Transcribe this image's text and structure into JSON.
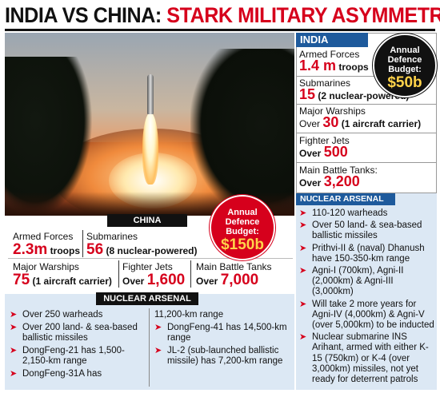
{
  "title": {
    "part1": "INDIA VS CHINA:",
    "part2": "STARK MILITARY ASYMMETRY"
  },
  "colors": {
    "accent_red": "#d6001c",
    "india_blue": "#1e5a9c",
    "panel_blue": "#dce8f4",
    "dark": "#111111"
  },
  "china": {
    "label": "CHINA",
    "budget": {
      "label_line1": "Annual",
      "label_line2": "Defence",
      "label_line3": "Budget:",
      "amount": "$150b"
    },
    "armed_forces": {
      "label": "Armed Forces",
      "value": "2.3m",
      "unit": "troops"
    },
    "submarines": {
      "label": "Submarines",
      "value": "56",
      "note": "(8 nuclear-powered)"
    },
    "warships": {
      "label": "Major Warships",
      "value": "75",
      "note": "(1 aircraft carrier)"
    },
    "fighter_jets": {
      "label": "Fighter Jets",
      "prefix": "Over",
      "value": "1,600"
    },
    "tanks": {
      "label": "Main Battle Tanks",
      "prefix": "Over",
      "value": "7,000"
    },
    "nuclear": {
      "label": "NUCLEAR ARSENAL",
      "left_items": [
        "Over 250 warheads",
        "Over 200 land- & sea-based ballistic missiles",
        "DongFeng-21 has 1,500-2,150-km range",
        "DongFeng-31A has"
      ],
      "right_continuation": "11,200-km range",
      "right_items": [
        "DongFeng-41 has 14,500-km range",
        "JL-2 (sub-launched ballistic missile) has 7,200-km range"
      ]
    }
  },
  "india": {
    "label": "INDIA",
    "budget": {
      "label_line1": "Annual",
      "label_line2": "Defence",
      "label_line3": "Budget:",
      "amount": "$50b"
    },
    "armed_forces": {
      "label": "Armed Forces",
      "value": "1.4 m",
      "unit": "troops"
    },
    "submarines": {
      "label": "Submarines",
      "value": "15",
      "note": "(2 nuclear-powered)"
    },
    "warships": {
      "label": "Major Warships",
      "prefix": "Over",
      "value": "30",
      "note": "(1 aircraft carrier)"
    },
    "fighter_jets": {
      "label": "Fighter Jets",
      "prefix": "Over",
      "value": "500"
    },
    "tanks": {
      "label": "Main Battle Tanks:",
      "prefix": "Over",
      "value": "3,200"
    },
    "nuclear": {
      "label": "NUCLEAR ARSENAL",
      "items": [
        "110-120 warheads",
        "Over 50 land- & sea-based ballistic missiles",
        "Prithvi-II & (naval) Dhanush have 150-350-km range",
        "Agni-I (700km), Agni-II (2,000km) & Agni-III (3,000km)",
        "Will take 2 more years for Agni-IV (4,000km) & Agni-V (over 5,000km) to be inducted",
        "Nuclear submarine INS Arihant, armed with either K-15 (750km) or K-4 (over 3,000km) missiles, not yet ready for deterrent patrols"
      ]
    }
  }
}
